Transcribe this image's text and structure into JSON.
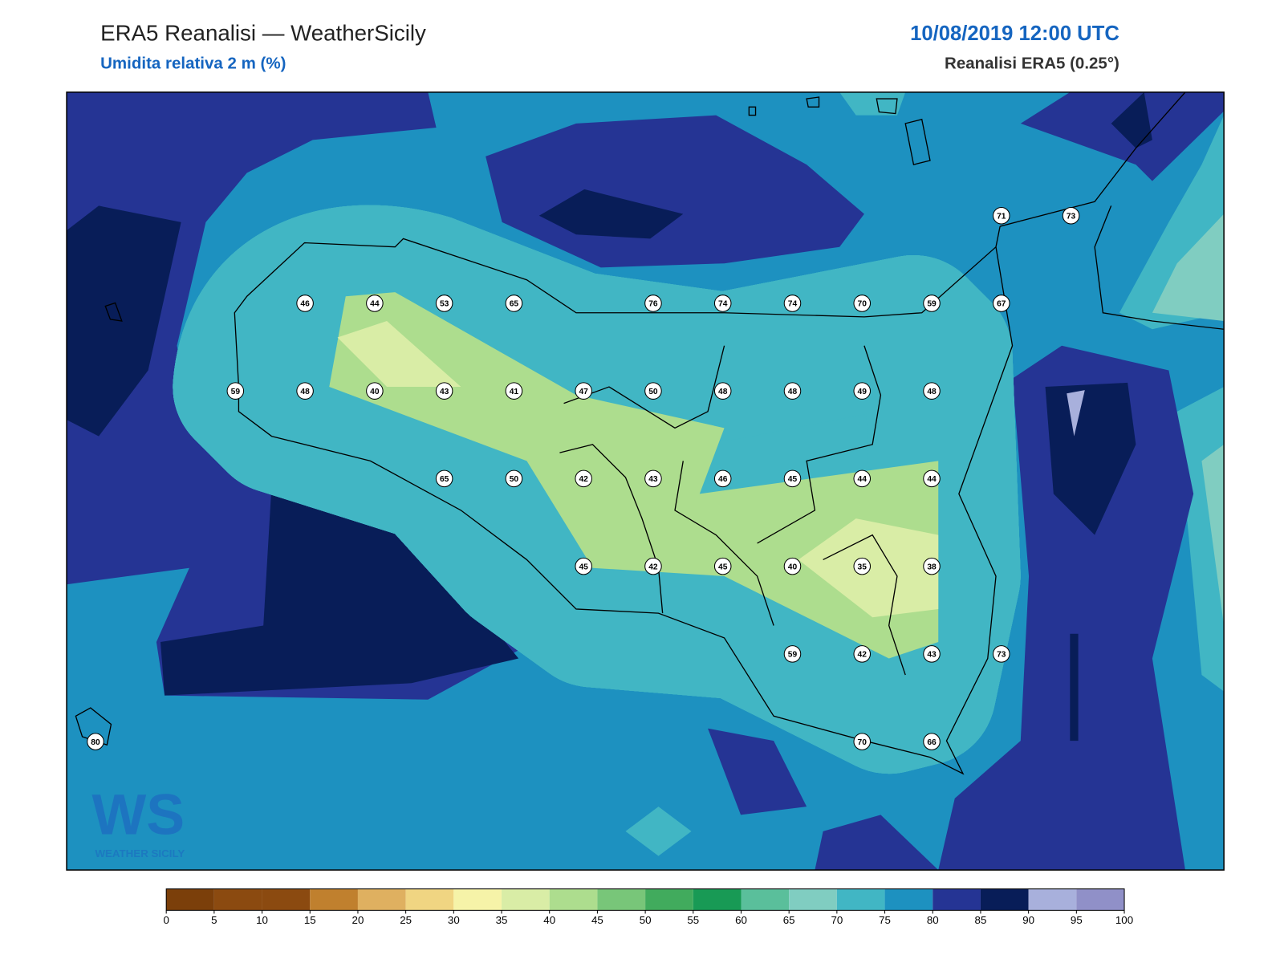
{
  "header": {
    "title": "ERA5 Reanalisi — WeatherSicily",
    "subtitle": "Umidita relativa 2 m (%)",
    "date": "10/08/2019 12:00 UTC",
    "source": "Reanalisi ERA5 (0.25°)"
  },
  "stations": [
    71,
    73,
    46,
    44,
    53,
    65,
    76,
    74,
    74,
    70,
    59,
    67,
    59,
    48,
    40,
    43,
    41,
    47,
    50,
    48,
    48,
    49,
    48,
    65,
    50,
    42,
    43,
    46,
    45,
    44,
    44,
    45,
    42,
    45,
    40,
    35,
    38,
    59,
    42,
    43,
    73,
    80,
    70,
    66
  ],
  "logo": {
    "mark": "WS",
    "name": "WEATHER SICILY"
  },
  "colorbar": {
    "ticks": [
      0,
      5,
      10,
      15,
      20,
      25,
      30,
      35,
      40,
      45,
      50,
      55,
      60,
      65,
      70,
      75,
      80,
      85,
      90,
      95,
      100
    ],
    "colors": [
      "#7b3f0a",
      "#8b4a10",
      "#8b4a10",
      "#c0802e",
      "#dfb060",
      "#f0d582",
      "#f6f3a8",
      "#d9eda6",
      "#addd8e",
      "#78c679",
      "#41ab5d",
      "#189a55",
      "#5abf9b",
      "#80cdc1",
      "#41b6c4",
      "#1d91c0",
      "#253494",
      "#081d58",
      "#a8b0dc",
      "#9090c8"
    ]
  }
}
